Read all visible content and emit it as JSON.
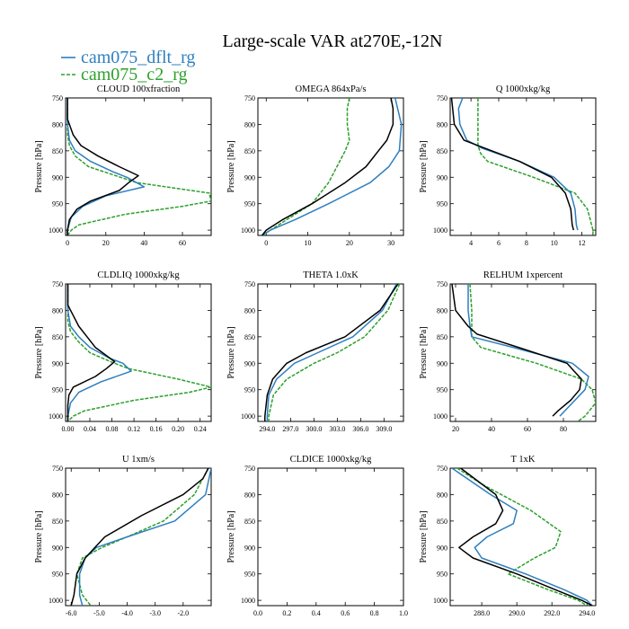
{
  "title": "Large-scale VAR at270E,-12N",
  "legend": [
    {
      "name": "cam075_dflt_rg",
      "color": "#2e7fbf",
      "dashed": false
    },
    {
      "name": "cam075_c2_rg",
      "color": "#2ca02c",
      "dashed": true
    }
  ],
  "colors": {
    "obs": "#000000",
    "dflt": "#2e7fbf",
    "c2": "#2ca02c"
  },
  "chart_data": [
    {
      "type": "line",
      "title": "CLOUD  100xfraction",
      "ylabel": "Pressure [hPa]",
      "xlim": [
        -1,
        75
      ],
      "ylim": [
        750,
        1010
      ],
      "y_reversed": true,
      "xticks": [
        0,
        20,
        40,
        60
      ],
      "xticklabels": [
        "0",
        "20",
        "40",
        "60"
      ],
      "yticks": [
        750,
        800,
        850,
        900,
        950,
        1000
      ],
      "yticklabels": [
        "750",
        "800",
        "850",
        "900",
        "950",
        "1000"
      ],
      "series": [
        {
          "key": "obs",
          "p": [
            750,
            790,
            820,
            840,
            860,
            880,
            897,
            910,
            925,
            945,
            960,
            980,
            1000,
            1010
          ],
          "v": [
            0,
            0,
            3,
            7,
            16,
            27,
            37,
            32,
            27,
            12,
            5,
            1,
            0,
            0
          ]
        },
        {
          "key": "dflt",
          "p": [
            750,
            800,
            830,
            850,
            870,
            890,
            900,
            918,
            935,
            955,
            975,
            1000,
            1010
          ],
          "v": [
            0,
            0,
            1,
            4,
            12,
            24,
            31,
            40,
            20,
            8,
            2,
            0,
            0
          ]
        },
        {
          "key": "c2",
          "p": [
            750,
            820,
            840,
            860,
            880,
            898,
            910,
            930,
            945,
            955,
            970,
            990,
            1000,
            1010
          ],
          "v": [
            0,
            0,
            1,
            4,
            11,
            26,
            36,
            74,
            75,
            60,
            30,
            6,
            2,
            0
          ]
        }
      ]
    },
    {
      "type": "line",
      "title": "OMEGA  864xPa/s",
      "ylabel": "Pressure [hPa]",
      "xlim": [
        -2,
        33
      ],
      "ylim": [
        750,
        1010
      ],
      "y_reversed": true,
      "xticks": [
        0,
        10,
        20,
        30
      ],
      "xticklabels": [
        "0",
        "10",
        "20",
        "30"
      ],
      "yticks": [
        750,
        800,
        850,
        900,
        950,
        1000
      ],
      "yticklabels": [
        "750",
        "800",
        "850",
        "900",
        "950",
        "1000"
      ],
      "series": [
        {
          "key": "obs",
          "p": [
            750,
            770,
            800,
            830,
            850,
            880,
            910,
            950,
            980,
            1000,
            1010
          ],
          "v": [
            30,
            30.5,
            30.5,
            29,
            27,
            24,
            19,
            11,
            4,
            0,
            -1
          ]
        },
        {
          "key": "dflt",
          "p": [
            750,
            800,
            850,
            880,
            910,
            950,
            980,
            1000,
            1010
          ],
          "v": [
            31,
            32.5,
            32,
            29.5,
            25,
            15,
            7,
            1,
            -1
          ]
        },
        {
          "key": "c2",
          "p": [
            750,
            770,
            800,
            830,
            850,
            880,
            910,
            950,
            980,
            1000,
            1010
          ],
          "v": [
            20,
            19.5,
            19.5,
            20,
            19,
            17,
            15,
            11,
            5,
            1,
            -1
          ]
        }
      ]
    },
    {
      "type": "line",
      "title": "Q  1000xkg/kg",
      "ylabel": "Pressure [hPa]",
      "xlim": [
        2.5,
        13
      ],
      "ylim": [
        750,
        1010
      ],
      "y_reversed": true,
      "xticks": [
        4,
        6,
        8,
        10,
        12
      ],
      "xticklabels": [
        "4",
        "6",
        "8",
        "10",
        "12"
      ],
      "yticks": [
        750,
        800,
        850,
        900,
        950,
        1000
      ],
      "yticklabels": [
        "750",
        "800",
        "850",
        "900",
        "950",
        "1000"
      ],
      "series": [
        {
          "key": "obs",
          "p": [
            750,
            800,
            830,
            845,
            870,
            900,
            930,
            960,
            990,
            1000
          ],
          "v": [
            2.6,
            2.8,
            3.5,
            5,
            7.5,
            9.8,
            10.8,
            11.2,
            11.3,
            11.4
          ]
        },
        {
          "key": "dflt",
          "p": [
            750,
            770,
            800,
            830,
            845,
            870,
            900,
            930,
            960,
            990,
            1000
          ],
          "v": [
            3.4,
            3.1,
            3.2,
            3.7,
            4.8,
            7.5,
            10,
            11.2,
            11.5,
            11.6,
            11.7
          ]
        },
        {
          "key": "c2",
          "p": [
            750,
            800,
            840,
            855,
            870,
            900,
            930,
            960,
            990,
            1000,
            1010
          ],
          "v": [
            4.5,
            4.5,
            4.5,
            4.7,
            5.2,
            8.5,
            11.5,
            12.4,
            12.7,
            12.8,
            12.8
          ]
        }
      ]
    },
    {
      "type": "line",
      "title": "CLDLIQ  1000xkg/kg",
      "ylabel": "Pressure [hPa]",
      "xlim": [
        -0.004,
        0.26
      ],
      "ylim": [
        750,
        1010
      ],
      "y_reversed": true,
      "xticks": [
        0,
        0.04,
        0.08,
        0.12,
        0.16,
        0.2,
        0.24
      ],
      "xticklabels": [
        "0.00",
        "0.04",
        "0.08",
        "0.12",
        "0.16",
        "0.20",
        "0.24"
      ],
      "series": [
        {
          "key": "obs",
          "p": [
            750,
            790,
            810,
            830,
            850,
            870,
            897,
            910,
            925,
            945,
            960,
            980,
            1000,
            1010
          ],
          "v": [
            0,
            0,
            0.01,
            0.02,
            0.035,
            0.05,
            0.085,
            0.07,
            0.05,
            0.01,
            0.002,
            0,
            0,
            0
          ]
        },
        {
          "key": "dflt",
          "p": [
            750,
            800,
            830,
            850,
            870,
            890,
            900,
            915,
            935,
            955,
            975,
            1000,
            1010
          ],
          "v": [
            0,
            0,
            0.005,
            0.02,
            0.04,
            0.075,
            0.1,
            0.115,
            0.06,
            0.02,
            0.005,
            0,
            0
          ]
        },
        {
          "key": "c2",
          "p": [
            750,
            820,
            840,
            860,
            880,
            898,
            910,
            930,
            945,
            955,
            970,
            990,
            1000,
            1010
          ],
          "v": [
            0,
            0,
            0.005,
            0.02,
            0.04,
            0.08,
            0.11,
            0.2,
            0.26,
            0.22,
            0.12,
            0.03,
            0.01,
            0
          ]
        }
      ],
      "yticks": [
        750,
        800,
        850,
        900,
        950,
        1000
      ],
      "yticklabels": [
        "750",
        "800",
        "850",
        "900",
        "950",
        "1000"
      ]
    },
    {
      "type": "line",
      "title": "THETA  1.0xK",
      "ylabel": "Pressure [hPa]",
      "xlim": [
        292.8,
        311.5
      ],
      "ylim": [
        750,
        1010
      ],
      "y_reversed": true,
      "xticks": [
        294,
        297,
        300,
        303,
        306,
        309
      ],
      "xticklabels": [
        "294.0",
        "297.0",
        "300.0",
        "303.0",
        "306.0",
        "309.0"
      ],
      "yticks": [
        750,
        800,
        850,
        900,
        950,
        1000
      ],
      "yticklabels": [
        "750",
        "800",
        "850",
        "900",
        "950",
        "1000"
      ],
      "series": [
        {
          "key": "obs",
          "p": [
            750,
            800,
            850,
            880,
            900,
            930,
            960,
            1000,
            1010
          ],
          "v": [
            310.8,
            308.5,
            304,
            299,
            296.5,
            294.7,
            294,
            293.7,
            293.7
          ]
        },
        {
          "key": "dflt",
          "p": [
            750,
            800,
            850,
            880,
            900,
            930,
            960,
            1000,
            1010
          ],
          "v": [
            310.6,
            308.8,
            305,
            300.5,
            297.5,
            295.2,
            294.2,
            294,
            294
          ]
        },
        {
          "key": "c2",
          "p": [
            750,
            800,
            850,
            880,
            900,
            930,
            960,
            1000,
            1010
          ],
          "v": [
            311,
            309.5,
            306.5,
            303,
            300,
            296.5,
            294.8,
            294.2,
            294.2
          ]
        }
      ]
    },
    {
      "type": "line",
      "title": "RELHUM  1xpercent",
      "ylabel": "Pressure [hPa]",
      "xlim": [
        17,
        98
      ],
      "ylim": [
        750,
        1010
      ],
      "y_reversed": true,
      "xticks": [
        20,
        40,
        60,
        80
      ],
      "xticklabels": [
        "20",
        "40",
        "60",
        "80"
      ],
      "yticks": [
        750,
        800,
        850,
        900,
        950,
        1000
      ],
      "yticklabels": [
        "750",
        "800",
        "850",
        "900",
        "950",
        "1000"
      ],
      "series": [
        {
          "key": "obs",
          "p": [
            750,
            800,
            830,
            845,
            870,
            900,
            930,
            950,
            970,
            990,
            1000
          ],
          "v": [
            18,
            20,
            27,
            32,
            55,
            82,
            90,
            89,
            84,
            77,
            74
          ]
        },
        {
          "key": "dflt",
          "p": [
            750,
            800,
            830,
            850,
            870,
            900,
            925,
            950,
            975,
            1000
          ],
          "v": [
            27,
            27,
            28,
            29,
            52,
            85,
            94,
            92,
            85,
            78
          ]
        },
        {
          "key": "c2",
          "p": [
            750,
            800,
            850,
            870,
            900,
            930,
            950,
            975,
            1000,
            1010
          ],
          "v": [
            28,
            29,
            29,
            34,
            65,
            90,
            96,
            98,
            92,
            88
          ]
        }
      ]
    },
    {
      "type": "line",
      "title": "U  1xm/s",
      "ylabel": "Pressure [hPa]",
      "xlim": [
        -6.2,
        -1.0
      ],
      "ylim": [
        750,
        1010
      ],
      "y_reversed": true,
      "xticks": [
        -6,
        -5,
        -4,
        -3,
        -2
      ],
      "xticklabels": [
        "-6.0",
        "-5.0",
        "-4.0",
        "-3.0",
        "-2.0"
      ],
      "yticks": [
        750,
        800,
        850,
        900,
        950,
        1000
      ],
      "yticklabels": [
        "750",
        "800",
        "850",
        "900",
        "950",
        "1000"
      ],
      "series": [
        {
          "key": "obs",
          "p": [
            750,
            770,
            800,
            840,
            880,
            920,
            950,
            990,
            1010
          ],
          "v": [
            -1.1,
            -1.3,
            -2,
            -3.5,
            -4.8,
            -5.5,
            -5.8,
            -5.9,
            -6
          ]
        },
        {
          "key": "dflt",
          "p": [
            750,
            800,
            850,
            880,
            900,
            920,
            950,
            990,
            1010
          ],
          "v": [
            -1,
            -1.2,
            -2.3,
            -4,
            -5.1,
            -5.5,
            -5.7,
            -5.7,
            -5.6
          ]
        },
        {
          "key": "c2",
          "p": [
            750,
            800,
            850,
            880,
            900,
            920,
            950,
            990,
            1010
          ],
          "v": [
            -1.1,
            -1.6,
            -2.7,
            -4,
            -4.9,
            -5.6,
            -5.8,
            -5.6,
            -5.3
          ]
        }
      ]
    },
    {
      "type": "line",
      "title": "CLDICE  1000xkg/kg",
      "ylabel": "Pressure [hPa]",
      "xlim": [
        0,
        1
      ],
      "ylim": [
        750,
        1010
      ],
      "y_reversed": true,
      "xticks": [
        0,
        0.2,
        0.4,
        0.6,
        0.8,
        1.0
      ],
      "xticklabels": [
        "0.0",
        "0.2",
        "0.4",
        "0.6",
        "0.8",
        "1.0"
      ],
      "yticks": [
        750,
        800,
        850,
        900,
        950,
        1000
      ],
      "yticklabels": [
        "750",
        "800",
        "850",
        "900",
        "950",
        "1000"
      ],
      "series": []
    },
    {
      "type": "line",
      "title": "T  1xK",
      "ylabel": "Pressure [hPa]",
      "xlim": [
        286.2,
        294.5
      ],
      "ylim": [
        750,
        1010
      ],
      "y_reversed": true,
      "xticks": [
        288,
        290,
        292,
        294
      ],
      "xticklabels": [
        "288.0",
        "290.0",
        "292.0",
        "294.0"
      ],
      "yticks": [
        750,
        800,
        850,
        900,
        950,
        1000
      ],
      "yticklabels": [
        "750",
        "800",
        "850",
        "900",
        "950",
        "1000"
      ],
      "series": [
        {
          "key": "obs",
          "p": [
            750,
            800,
            830,
            855,
            880,
            900,
            920,
            950,
            980,
            1000,
            1010
          ],
          "v": [
            286.8,
            288.8,
            289.2,
            288.8,
            287.5,
            286.7,
            287.5,
            290,
            292.2,
            293.7,
            294.3
          ]
        },
        {
          "key": "dflt",
          "p": [
            750,
            800,
            830,
            855,
            880,
            900,
            920,
            950,
            980,
            1000,
            1010
          ],
          "v": [
            286.3,
            288.5,
            290,
            289.8,
            288.3,
            287.6,
            288,
            290.5,
            292.7,
            294,
            294.3
          ]
        },
        {
          "key": "c2",
          "p": [
            750,
            780,
            830,
            870,
            900,
            920,
            950,
            980,
            1000,
            1010
          ],
          "v": [
            286.6,
            288,
            290.8,
            292.5,
            292.2,
            291,
            289.5,
            291.8,
            293.5,
            294
          ]
        }
      ]
    }
  ]
}
